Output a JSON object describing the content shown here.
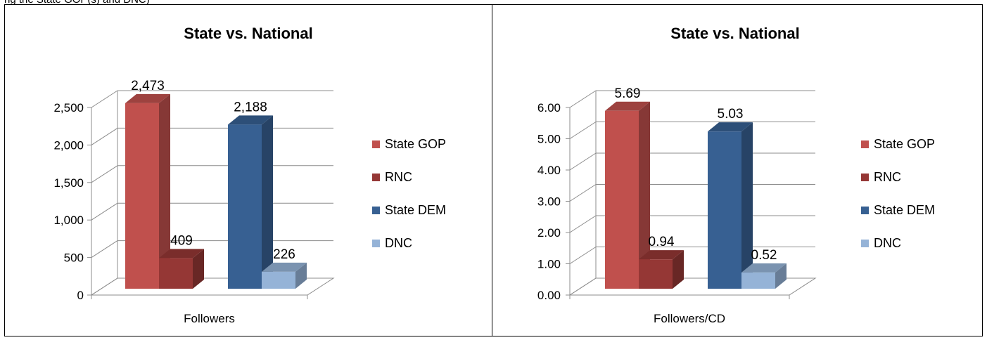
{
  "header_fragment": "ng the State GOP(s) and DNC)",
  "chart_data": [
    {
      "type": "bar",
      "title": "State vs. National",
      "categories": [
        "Followers"
      ],
      "series": [
        {
          "name": "State GOP",
          "values": [
            2473
          ],
          "label": "2,473"
        },
        {
          "name": "RNC",
          "values": [
            409
          ],
          "label": "409"
        },
        {
          "name": "State DEM",
          "values": [
            2188
          ],
          "label": "2,188"
        },
        {
          "name": "DNC",
          "values": [
            226
          ],
          "label": "226"
        }
      ],
      "ylim": [
        0,
        2500
      ],
      "yticks": [
        "0",
        "500",
        "1,000",
        "1,500",
        "2,000",
        "2,500"
      ],
      "grid": true,
      "legend": "right",
      "colors": {
        "State GOP": "#c0504d",
        "RNC": "#953735",
        "State DEM": "#376092",
        "DNC": "#95b3d7"
      }
    },
    {
      "type": "bar",
      "title": "State vs. National",
      "categories": [
        "Followers/CD"
      ],
      "series": [
        {
          "name": "State GOP",
          "values": [
            5.69
          ],
          "label": "5.69"
        },
        {
          "name": "RNC",
          "values": [
            0.94
          ],
          "label": "0.94"
        },
        {
          "name": "State DEM",
          "values": [
            5.03
          ],
          "label": "5.03"
        },
        {
          "name": "DNC",
          "values": [
            0.52
          ],
          "label": "0.52"
        }
      ],
      "ylim": [
        0,
        6
      ],
      "yticks": [
        "0.00",
        "1.00",
        "2.00",
        "3.00",
        "4.00",
        "5.00",
        "6.00"
      ],
      "grid": true,
      "legend": "right",
      "colors": {
        "State GOP": "#c0504d",
        "RNC": "#953735",
        "State DEM": "#376092",
        "DNC": "#95b3d7"
      }
    }
  ]
}
